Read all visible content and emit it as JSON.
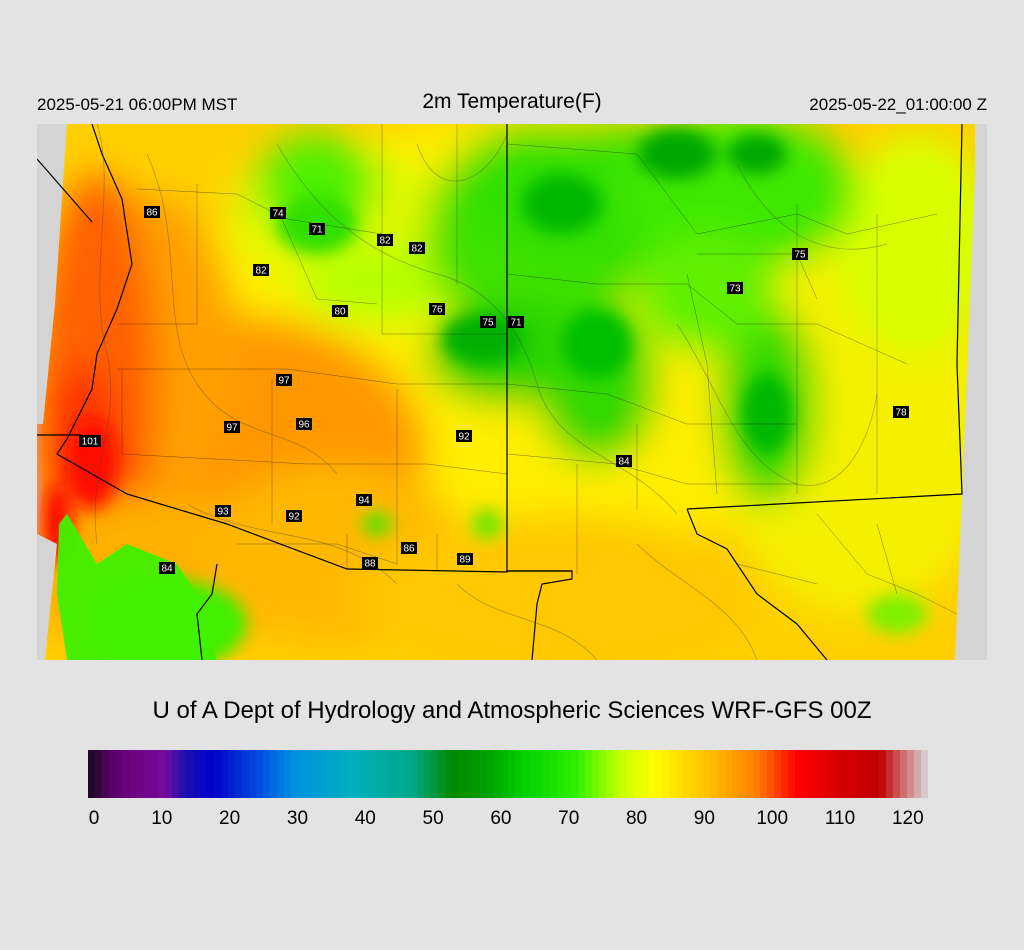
{
  "header": {
    "valid_local": "2025-05-21 06:00PM MST",
    "title": "2m Temperature(F)",
    "valid_utc": "2025-05-22_01:00:00 Z"
  },
  "credit": "U of A Dept of Hydrology and Atmospheric Sciences WRF-GFS 00Z",
  "colorbar": {
    "min": 0,
    "max": 122,
    "tick_labels": [
      "0",
      "10",
      "20",
      "30",
      "40",
      "50",
      "60",
      "70",
      "80",
      "90",
      "100",
      "110",
      "120"
    ],
    "stops": [
      {
        "v": 0,
        "c": "#1a0a1e"
      },
      {
        "v": 4,
        "c": "#600070"
      },
      {
        "v": 11,
        "c": "#7a0a9a"
      },
      {
        "v": 14,
        "c": "#2010b0"
      },
      {
        "v": 18,
        "c": "#0000c8"
      },
      {
        "v": 25,
        "c": "#0050e0"
      },
      {
        "v": 30,
        "c": "#0090e0"
      },
      {
        "v": 38,
        "c": "#00b0c0"
      },
      {
        "v": 47,
        "c": "#00a888"
      },
      {
        "v": 53,
        "c": "#008a00"
      },
      {
        "v": 58,
        "c": "#00a000"
      },
      {
        "v": 63,
        "c": "#00d000"
      },
      {
        "v": 71,
        "c": "#30f000"
      },
      {
        "v": 77,
        "c": "#c0ff00"
      },
      {
        "v": 82,
        "c": "#ffff00"
      },
      {
        "v": 90,
        "c": "#ffc000"
      },
      {
        "v": 97,
        "c": "#ff8000"
      },
      {
        "v": 103,
        "c": "#ff0000"
      },
      {
        "v": 109,
        "c": "#d80000"
      },
      {
        "v": 115,
        "c": "#c00000"
      },
      {
        "v": 119,
        "c": "#d08080"
      },
      {
        "v": 122,
        "c": "#d8d8d8"
      }
    ]
  },
  "stations": [
    {
      "label": "86",
      "value": 86
    },
    {
      "label": "74",
      "value": 74
    },
    {
      "label": "71",
      "value": 71
    },
    {
      "label": "82",
      "value": 82
    },
    {
      "label": "82",
      "value": 82
    },
    {
      "label": "82",
      "value": 82
    },
    {
      "label": "80",
      "value": 80
    },
    {
      "label": "76",
      "value": 76
    },
    {
      "label": "75",
      "value": 75
    },
    {
      "label": "71",
      "value": 71
    },
    {
      "label": "75",
      "value": 75
    },
    {
      "label": "73",
      "value": 73
    },
    {
      "label": "97",
      "value": 97
    },
    {
      "label": "97",
      "value": 97
    },
    {
      "label": "96",
      "value": 96
    },
    {
      "label": "101",
      "value": 101
    },
    {
      "label": "92",
      "value": 92
    },
    {
      "label": "78",
      "value": 78
    },
    {
      "label": "84",
      "value": 84
    },
    {
      "label": "94",
      "value": 94
    },
    {
      "label": "93",
      "value": 93
    },
    {
      "label": "92",
      "value": 92
    },
    {
      "label": "86",
      "value": 86
    },
    {
      "label": "88",
      "value": 88
    },
    {
      "label": "89",
      "value": 89
    },
    {
      "label": "84",
      "value": 84
    }
  ],
  "colors": {
    "background": "#e3e3e3",
    "outside_domain": "#d4d4d4",
    "border": "#000000"
  }
}
